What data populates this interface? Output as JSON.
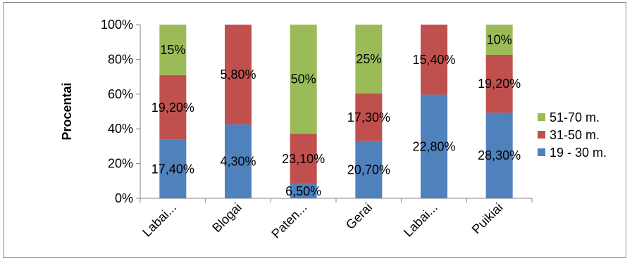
{
  "chart_data": {
    "type": "bar",
    "stacked": "percent",
    "ylabel": "Procentai",
    "yticks": [
      "0%",
      "20%",
      "40%",
      "60%",
      "80%",
      "100%"
    ],
    "ylim": [
      0,
      100
    ],
    "categories": [
      "Labai...",
      "Blogai",
      "Paten...",
      "Gerai",
      "Labai...",
      "Puikiai"
    ],
    "series": [
      {
        "name": "19 - 30 m.",
        "color": "#4F81BD",
        "values": [
          17.4,
          4.3,
          6.5,
          20.7,
          22.8,
          28.3
        ],
        "labels": [
          "17,40%",
          "4,30%",
          "6,50%",
          "20,70%",
          "22,80%",
          "28,30%"
        ]
      },
      {
        "name": "31-50 m.",
        "color": "#C0504D",
        "values": [
          19.2,
          5.8,
          23.1,
          17.3,
          15.4,
          19.2
        ],
        "labels": [
          "19,20%",
          "5,80%",
          "23,10%",
          "17,30%",
          "15,40%",
          "19,20%"
        ]
      },
      {
        "name": "51-70 m.",
        "color": "#9BBB59",
        "values": [
          15,
          0,
          50,
          25,
          0,
          10
        ],
        "labels": [
          "15%",
          "",
          "50%",
          "25%",
          "",
          "10%"
        ]
      }
    ],
    "legend": {
      "position": "right",
      "order": [
        "51-70 m.",
        "31-50 m.",
        "19 - 30 m."
      ]
    },
    "grid": false
  }
}
